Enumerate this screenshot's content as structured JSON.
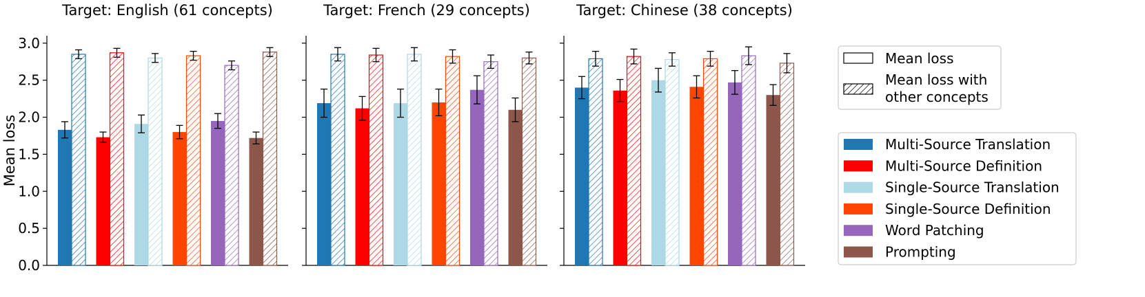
{
  "chart_data": {
    "type": "bar",
    "ylabel": "Mean loss",
    "ylim": [
      0,
      3.1
    ],
    "yticks": [
      0.0,
      0.5,
      1.0,
      1.5,
      2.0,
      2.5,
      3.0
    ],
    "ytick_labels": [
      "0.0",
      "0.5",
      "1.0",
      "1.5",
      "2.0",
      "2.5",
      "3.0"
    ],
    "methods": [
      {
        "name": "Multi-Source Translation",
        "color": "#1f77b4"
      },
      {
        "name": "Multi-Source Definition",
        "color": "#ff0000"
      },
      {
        "name": "Single-Source Translation",
        "color": "#add8e6"
      },
      {
        "name": "Single-Source Definition",
        "color": "#ff4500"
      },
      {
        "name": "Word Patching",
        "color": "#9467bd"
      },
      {
        "name": "Prompting",
        "color": "#8c564b"
      }
    ],
    "bar_kinds": [
      "Mean loss",
      "Mean loss with other concepts"
    ],
    "panels": [
      {
        "title": "Target: English (61 concepts)",
        "mean_loss": [
          1.83,
          1.73,
          1.91,
          1.8,
          1.95,
          1.72
        ],
        "mean_loss_err": [
          0.11,
          0.07,
          0.12,
          0.09,
          0.1,
          0.08
        ],
        "other_loss": [
          2.85,
          2.87,
          2.8,
          2.83,
          2.7,
          2.88
        ],
        "other_loss_err": [
          0.06,
          0.06,
          0.06,
          0.06,
          0.06,
          0.06
        ]
      },
      {
        "title": "Target: French (29 concepts)",
        "mean_loss": [
          2.19,
          2.12,
          2.19,
          2.2,
          2.37,
          2.1
        ],
        "mean_loss_err": [
          0.19,
          0.16,
          0.19,
          0.18,
          0.19,
          0.16
        ],
        "other_loss": [
          2.85,
          2.84,
          2.85,
          2.82,
          2.75,
          2.8
        ],
        "other_loss_err": [
          0.09,
          0.09,
          0.09,
          0.09,
          0.09,
          0.08
        ]
      },
      {
        "title": "Target: Chinese (38 concepts)",
        "mean_loss": [
          2.4,
          2.36,
          2.5,
          2.41,
          2.47,
          2.3
        ],
        "mean_loss_err": [
          0.15,
          0.15,
          0.16,
          0.15,
          0.16,
          0.14
        ],
        "other_loss": [
          2.79,
          2.82,
          2.78,
          2.79,
          2.83,
          2.73
        ],
        "other_loss_err": [
          0.1,
          0.1,
          0.09,
          0.1,
          0.12,
          0.13
        ]
      }
    ],
    "legend_kinds": [
      "Mean loss",
      "Mean loss with\nother concepts"
    ]
  }
}
